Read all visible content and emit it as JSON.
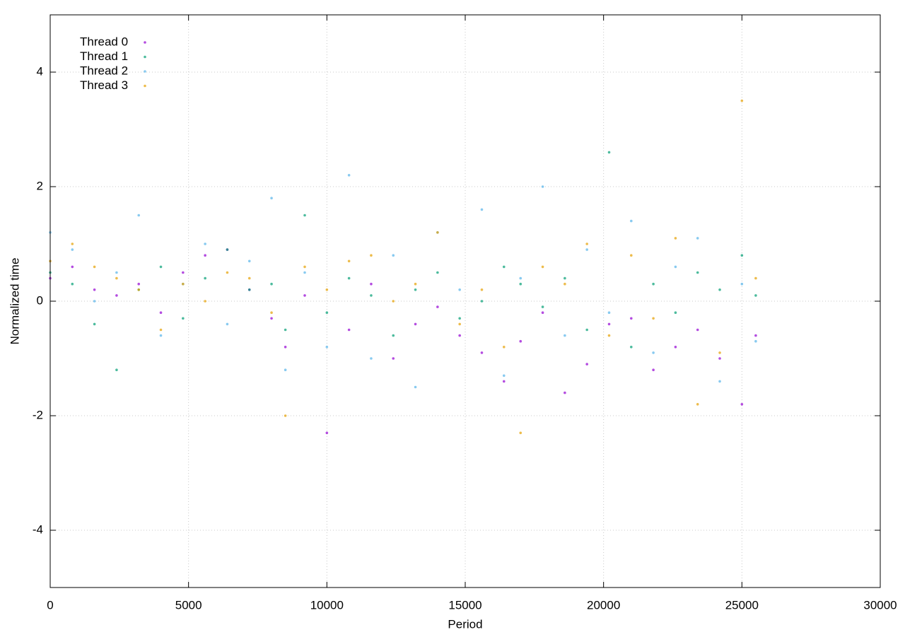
{
  "chart_data": {
    "type": "scatter",
    "xlabel": "Period",
    "ylabel": "Normalized time",
    "x": [
      0,
      800,
      1600,
      2400,
      3200,
      4000,
      4800,
      5600,
      6400,
      7200,
      8000,
      8500,
      9200,
      10000,
      10800,
      11600,
      12400,
      13200,
      14000,
      14800,
      15600,
      16400,
      17000,
      17800,
      18600,
      19400,
      20200,
      21000,
      21800,
      22600,
      23400,
      24200,
      25000,
      25500
    ],
    "series": [
      {
        "name": "Thread 0",
        "color": "#9400d3",
        "values": [
          0.4,
          0.6,
          0.2,
          0.1,
          0.3,
          -0.2,
          0.5,
          0.8,
          0.9,
          0.2,
          -0.3,
          -0.8,
          0.1,
          -2.3,
          -0.5,
          0.3,
          -1.0,
          -0.4,
          -0.1,
          -0.6,
          -0.9,
          -1.4,
          -0.7,
          -0.2,
          -1.6,
          -1.1,
          -0.4,
          -0.3,
          -1.2,
          -0.8,
          -0.5,
          -1.0,
          -1.8,
          -0.6
        ]
      },
      {
        "name": "Thread 1",
        "color": "#009e73",
        "values": [
          0.5,
          0.3,
          -0.4,
          -1.2,
          0.2,
          0.6,
          -0.3,
          0.4,
          0.9,
          0.2,
          0.3,
          -0.5,
          1.5,
          -0.2,
          0.4,
          0.1,
          -0.6,
          0.2,
          0.5,
          -0.3,
          0.0,
          0.6,
          0.3,
          -0.1,
          0.4,
          -0.5,
          2.6,
          -0.8,
          0.3,
          -0.2,
          0.5,
          0.2,
          0.8,
          0.1
        ]
      },
      {
        "name": "Thread 2",
        "color": "#56b4e9",
        "values": [
          1.2,
          0.9,
          0.0,
          0.5,
          1.5,
          -0.6,
          0.3,
          1.0,
          -0.4,
          0.7,
          1.8,
          -1.2,
          0.5,
          -0.8,
          2.2,
          -1.0,
          0.8,
          -1.5,
          1.2,
          0.2,
          1.6,
          -1.3,
          0.4,
          2.0,
          -0.6,
          0.9,
          -0.2,
          1.4,
          -0.9,
          0.6,
          1.1,
          -1.4,
          0.3,
          -0.7
        ]
      },
      {
        "name": "Thread 3",
        "color": "#e69f00",
        "values": [
          0.7,
          1.0,
          0.6,
          0.4,
          0.2,
          -0.5,
          0.3,
          0.0,
          0.5,
          0.4,
          -0.2,
          -2.0,
          0.6,
          0.2,
          0.7,
          0.8,
          0.0,
          0.3,
          1.2,
          -0.4,
          0.2,
          -0.8,
          -2.3,
          0.6,
          0.3,
          1.0,
          -0.6,
          0.8,
          -0.3,
          1.1,
          -1.8,
          -0.9,
          3.5,
          0.4
        ]
      }
    ],
    "xlim": [
      0,
      30000
    ],
    "xticks": [
      0,
      5000,
      10000,
      15000,
      20000,
      25000,
      30000
    ],
    "ylim": [
      -5,
      5
    ],
    "yticks": [
      -4,
      -2,
      0,
      2,
      4
    ],
    "grid": true,
    "legend": "top-left"
  }
}
